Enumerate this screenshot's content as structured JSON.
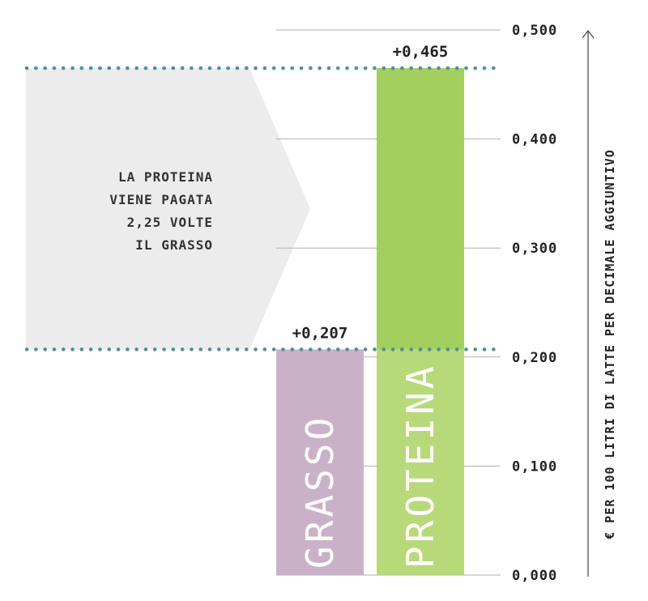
{
  "chart_data": {
    "type": "bar",
    "categories": [
      "GRASSO",
      "PROTEINA"
    ],
    "values": [
      0.207,
      0.465
    ],
    "value_labels": [
      "+0,207",
      "+0,465"
    ],
    "ylabel": "€ PER 100 LITRI DI LATTE PER DECIMALE AGGIUNTIVO",
    "ylim": [
      0,
      0.5
    ],
    "yticks": [
      0,
      0.1,
      0.2,
      0.3,
      0.4,
      0.5
    ],
    "ytick_labels": [
      "0,000",
      "0,100",
      "0,200",
      "0,300",
      "0,400",
      "0,500"
    ],
    "annotation": [
      "LA PROTEINA",
      "VIENE PAGATA",
      "2,25 VOLTE",
      "IL GRASSO"
    ],
    "colors": {
      "grasso": "#c9b2c7",
      "proteina_base": "#b8d97a",
      "proteina_top": "#a2cf5e",
      "dotted_line": "#4f8f98",
      "arrow_fill": "#ececec",
      "grid": "#b0b0b0"
    }
  }
}
